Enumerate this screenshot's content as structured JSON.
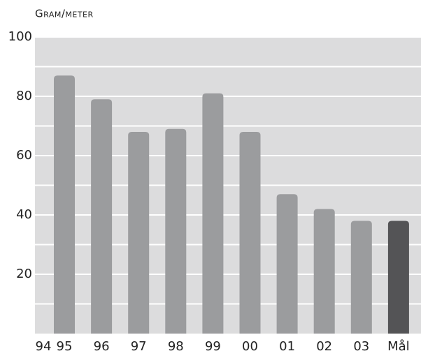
{
  "chart_data": {
    "type": "bar",
    "title": "Gram/meter",
    "categories": [
      "94",
      "95",
      "96",
      "97",
      "98",
      "99",
      "00",
      "01",
      "02",
      "03",
      "Mål"
    ],
    "values": [
      null,
      87,
      79,
      68,
      69,
      81,
      68,
      47,
      42,
      38,
      38
    ],
    "colors": [
      null,
      "#9b9c9e",
      "#9b9c9e",
      "#9b9c9e",
      "#9b9c9e",
      "#9b9c9e",
      "#9b9c9e",
      "#9b9c9e",
      "#9b9c9e",
      "#9b9c9e",
      "#545456"
    ],
    "ylim": [
      0,
      100
    ],
    "yticks": [
      20,
      40,
      60,
      80,
      100
    ],
    "minor_yticks": [
      10,
      30,
      50,
      70,
      90
    ],
    "grid": true,
    "background": "#dcdcdd"
  }
}
